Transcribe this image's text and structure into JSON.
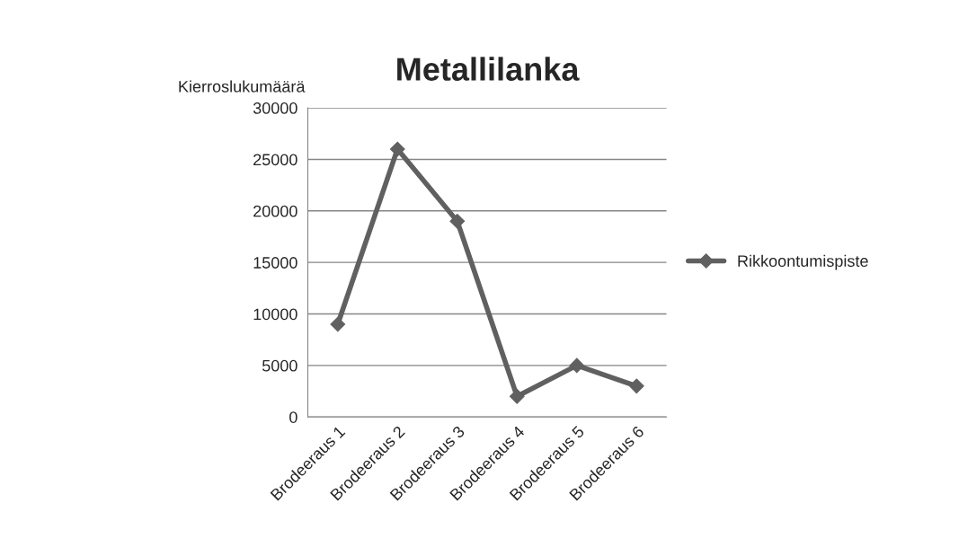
{
  "chart_data": {
    "type": "line",
    "title": "Metallilanka",
    "ylabel": "Kierroslukumäärä",
    "categories": [
      "Brodeeraus 1",
      "Brodeeraus 2",
      "Brodeeraus 3",
      "Brodeeraus 4",
      "Brodeeraus 5",
      "Brodeeraus 6"
    ],
    "series": [
      {
        "name": "Rikkoontumispiste",
        "color": "#606060",
        "values": [
          9000,
          26000,
          19000,
          2000,
          5000,
          3000
        ]
      }
    ],
    "ylim": [
      0,
      30000
    ],
    "yticks": [
      0,
      5000,
      10000,
      15000,
      20000,
      25000,
      30000
    ],
    "grid": "y",
    "legend": "right",
    "marker": "diamond",
    "line_style": "solid"
  }
}
